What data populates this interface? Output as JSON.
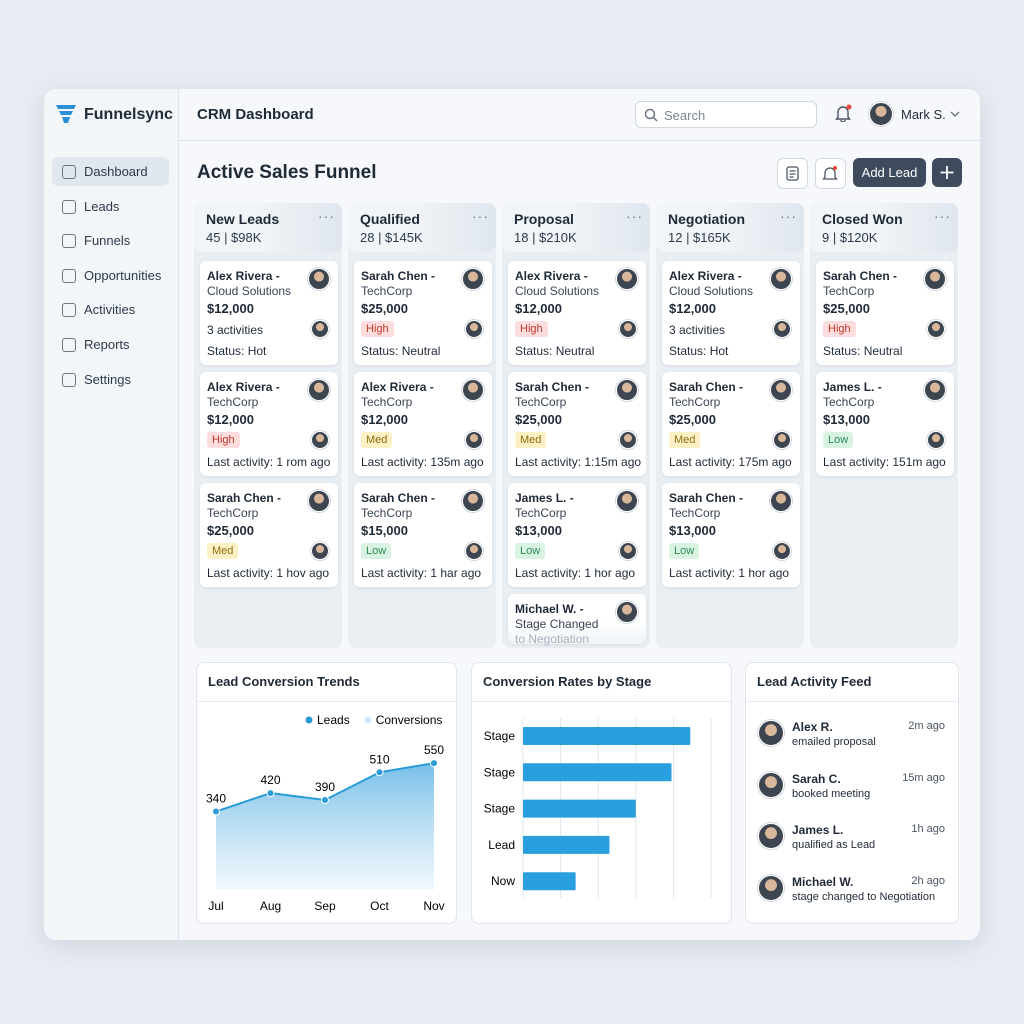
{
  "app": {
    "brand": "Funnelsync",
    "page_title": "CRM Dashboard",
    "search_placeholder": "Search",
    "user": "Mark S."
  },
  "nav": [
    "Dashboard",
    "Leads",
    "Funnels",
    "Opportunities",
    "Activities",
    "Reports",
    "Settings"
  ],
  "board": {
    "title": "Active Sales Funnel",
    "add_button": "Add Lead",
    "columns": [
      {
        "name": "New Leads",
        "summary": "45 | $98K",
        "cards": [
          {
            "name": "Alex Rivera -",
            "company": "Cloud Solutions",
            "amount": "$12,000",
            "note": "3 activities",
            "footer": "Status: Hot"
          },
          {
            "name": "Alex Rivera -",
            "company": "TechCorp",
            "amount": "$12,000",
            "tag": {
              "text": "High",
              "tone": "red"
            },
            "footer": "Last activity: 1 rom ago"
          },
          {
            "name": "Sarah Chen -",
            "company": "TechCorp",
            "amount": "$25,000",
            "tag": {
              "text": "Med",
              "tone": "yellow"
            },
            "footer": "Last activity: 1 hov ago"
          }
        ]
      },
      {
        "name": "Qualified",
        "summary": "28 | $145K",
        "cards": [
          {
            "name": "Sarah Chen -",
            "company": "TechCorp",
            "amount": "$25,000",
            "tag": {
              "text": "High",
              "tone": "red"
            },
            "footer": "Status: Neutral"
          },
          {
            "name": "Alex Rivera -",
            "company": "TechCorp",
            "amount": "$12,000",
            "tag": {
              "text": "Med",
              "tone": "yellow"
            },
            "footer": "Last activity: 135m ago"
          },
          {
            "name": "Sarah Chen -",
            "company": "TechCorp",
            "amount": "$15,000",
            "tag": {
              "text": "Low",
              "tone": "green"
            },
            "footer": "Last activity: 1 har ago"
          }
        ]
      },
      {
        "name": "Proposal",
        "summary": "18 | $210K",
        "cards": [
          {
            "name": "Alex Rivera -",
            "company": "Cloud Solutions",
            "amount": "$12,000",
            "tag": {
              "text": "High",
              "tone": "red"
            },
            "footer": "Status: Neutral"
          },
          {
            "name": "Sarah Chen -",
            "company": "TechCorp",
            "amount": "$25,000",
            "tag": {
              "text": "Med",
              "tone": "yellow"
            },
            "footer": "Last activity: 1:15m ago"
          },
          {
            "name": "James L. -",
            "company": "TechCorp",
            "amount": "$13,000",
            "tag": {
              "text": "Low",
              "tone": "green"
            },
            "footer": "Last activity: 1 hor ago"
          },
          {
            "name": "Michael W. -",
            "company": "Stage Changed",
            "amount_faded": "to Negotiation"
          }
        ]
      },
      {
        "name": "Negotiation",
        "summary": "12 | $165K",
        "cards": [
          {
            "name": "Alex Rivera -",
            "company": "Cloud Solutions",
            "amount": "$12,000",
            "note": "3 activities",
            "footer": "Status: Hot"
          },
          {
            "name": "Sarah Chen -",
            "company": "TechCorp",
            "amount": "$25,000",
            "tag": {
              "text": "Med",
              "tone": "yellow"
            },
            "footer": "Last activity: 175m ago"
          },
          {
            "name": "Sarah Chen -",
            "company": "TechCorp",
            "amount": "$13,000",
            "tag": {
              "text": "Low",
              "tone": "green"
            },
            "footer": "Last activity: 1 hor ago"
          }
        ]
      },
      {
        "name": "Closed Won",
        "summary": "9 | $120K",
        "cards": [
          {
            "name": "Sarah Chen -",
            "company": "TechCorp",
            "amount": "$25,000",
            "tag": {
              "text": "High",
              "tone": "red"
            },
            "footer": "Status: Neutral"
          },
          {
            "name": "James L. -",
            "company": "TechCorp",
            "amount": "$13,000",
            "tag": {
              "text": "Low",
              "tone": "green"
            },
            "footer": "Last activity: 151m ago"
          }
        ]
      }
    ]
  },
  "chart_data": [
    {
      "type": "line",
      "title": "Lead Conversion Trends",
      "categories": [
        "Jul",
        "Aug",
        "Sep",
        "Oct",
        "Nov"
      ],
      "series": [
        {
          "name": "Leads",
          "color": "#2b9bd8",
          "values": [
            340,
            420,
            390,
            510,
            550
          ]
        },
        {
          "name": "Conversions",
          "color": "#d3e8f6",
          "values": [
            null,
            null,
            null,
            null,
            null
          ]
        }
      ],
      "ylim": [
        0,
        650
      ],
      "area": true
    },
    {
      "type": "bar",
      "title": "Conversion Rates by Stage",
      "categories": [
        "Stage",
        "Stage",
        "Stage",
        "Lead",
        "Now"
      ],
      "values": [
        89,
        79,
        60,
        46,
        28
      ],
      "color": "#2a9fe0",
      "xlim": [
        0,
        100
      ],
      "xticks": [
        0,
        20,
        40,
        60,
        80,
        100
      ],
      "grid": true
    }
  ],
  "feed": {
    "title": "Lead Activity Feed",
    "items": [
      {
        "name": "Alex R.",
        "action": "emailed proposal",
        "time": "2m ago"
      },
      {
        "name": "Sarah C.",
        "action": "booked meeting",
        "time": "15m ago"
      },
      {
        "name": "James L.",
        "action": "qualified as Lead",
        "time": "1h ago"
      },
      {
        "name": "Michael W.",
        "action": "stage changed to Negotiation",
        "time": "2h ago"
      }
    ]
  }
}
